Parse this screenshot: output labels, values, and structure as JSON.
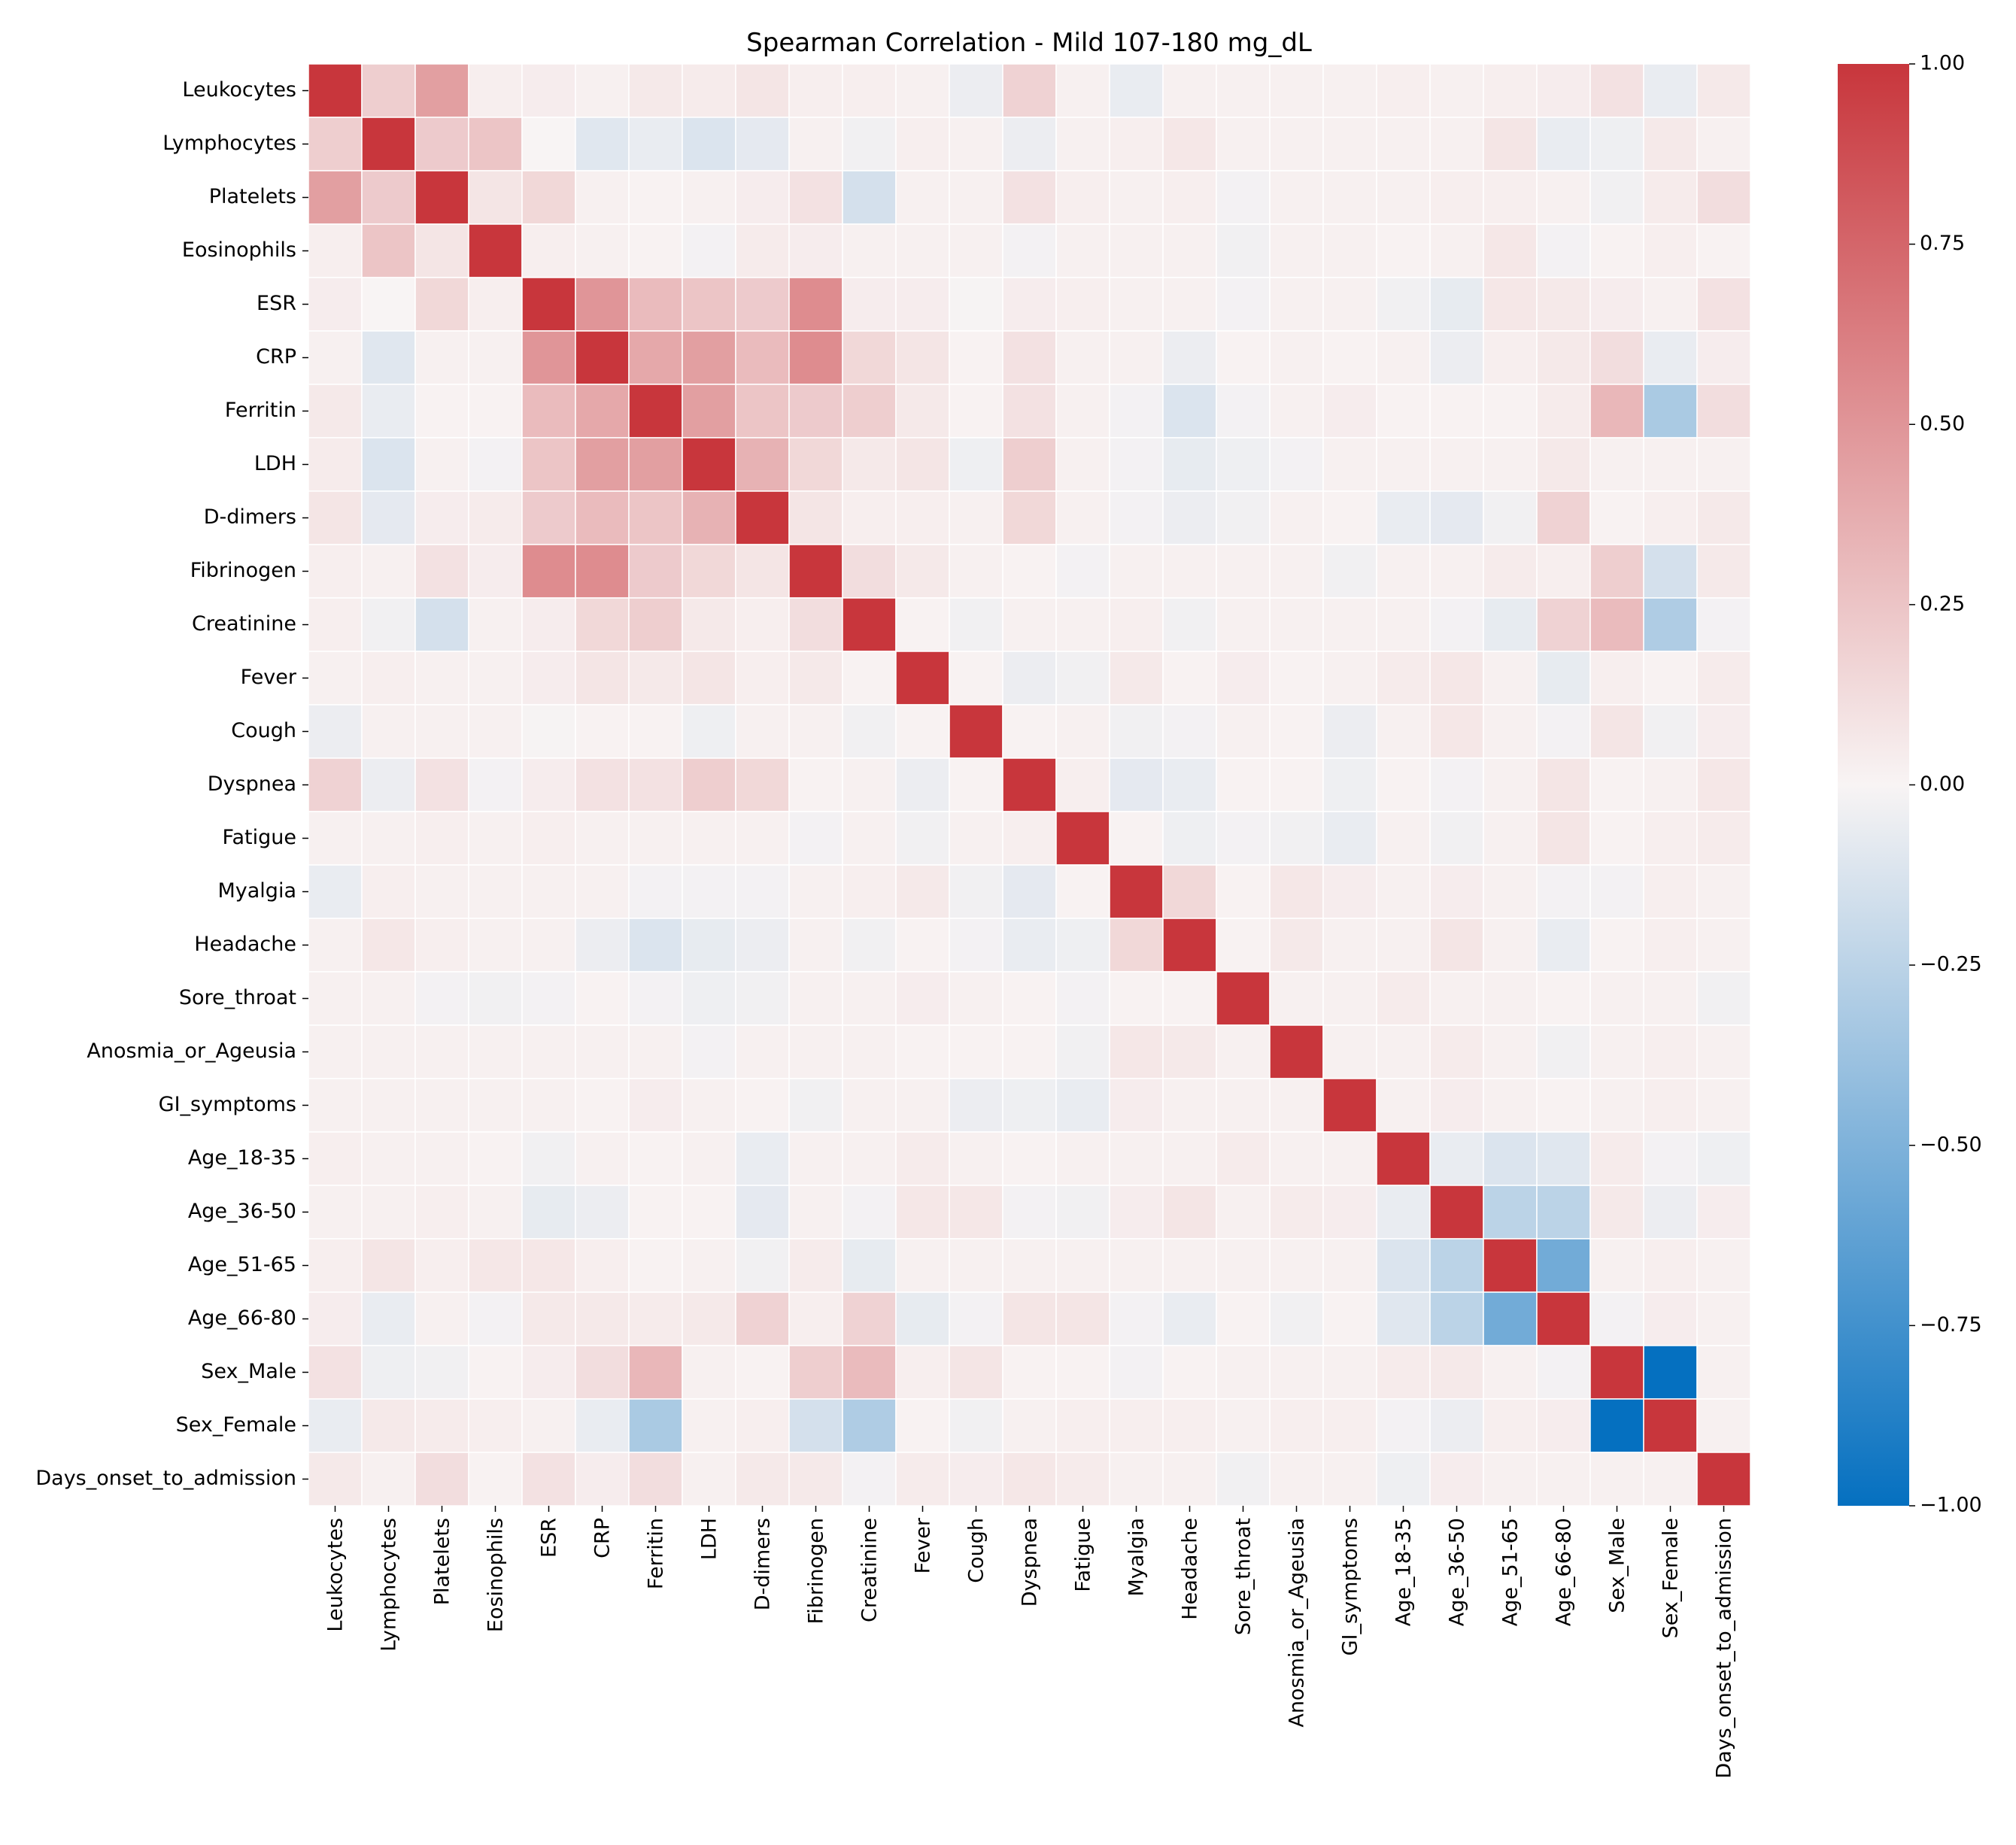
{
  "chart_data": {
    "type": "heatmap",
    "title": "Spearman Correlation - Mild 107-180 mg_dL",
    "labels": [
      "Leukocytes",
      "Lymphocytes",
      "Platelets",
      "Eosinophils",
      "ESR",
      "CRP",
      "Ferritin",
      "LDH",
      "D-dimers",
      "Fibrinogen",
      "Creatinine",
      "Fever",
      "Cough",
      "Dyspnea",
      "Fatigue",
      "Myalgia",
      "Headache",
      "Sore_throat",
      "Anosmia_or_Ageusia",
      "GI_symptoms",
      "Age_18-35",
      "Age_36-50",
      "Age_51-65",
      "Age_66-80",
      "Sex_Male",
      "Sex_Female",
      "Days_onset_to_admission"
    ],
    "matrix": [
      [
        1.0,
        0.2,
        0.45,
        0.03,
        0.04,
        0.02,
        0.06,
        0.05,
        0.08,
        0.03,
        0.03,
        0.02,
        -0.05,
        0.18,
        0.02,
        -0.06,
        0.02,
        0.02,
        0.02,
        0.02,
        0.03,
        0.02,
        0.03,
        0.04,
        0.1,
        -0.06,
        0.06
      ],
      [
        0.2,
        1.0,
        0.22,
        0.25,
        0.0,
        -0.1,
        -0.06,
        -0.12,
        -0.08,
        0.02,
        -0.03,
        0.03,
        0.02,
        -0.05,
        0.02,
        0.03,
        0.07,
        0.02,
        0.02,
        0.02,
        0.02,
        0.02,
        0.08,
        -0.06,
        -0.04,
        0.06,
        0.02
      ],
      [
        0.45,
        0.22,
        1.0,
        0.08,
        0.15,
        0.02,
        0.01,
        0.02,
        0.04,
        0.1,
        -0.15,
        0.02,
        0.02,
        0.1,
        0.03,
        0.02,
        0.03,
        -0.02,
        0.02,
        0.02,
        0.02,
        0.03,
        0.03,
        0.02,
        -0.03,
        0.05,
        0.12
      ],
      [
        0.03,
        0.25,
        0.08,
        1.0,
        0.03,
        0.02,
        0.01,
        -0.02,
        0.05,
        0.04,
        0.02,
        0.02,
        0.02,
        -0.02,
        0.02,
        0.02,
        0.02,
        -0.03,
        0.02,
        0.02,
        0.01,
        0.02,
        0.07,
        -0.02,
        0.01,
        0.03,
        0.01
      ],
      [
        0.04,
        0.0,
        0.15,
        0.03,
        1.0,
        0.5,
        0.3,
        0.25,
        0.22,
        0.55,
        0.04,
        0.04,
        -0.01,
        0.04,
        0.03,
        0.02,
        0.02,
        -0.02,
        0.02,
        0.02,
        -0.03,
        -0.07,
        0.07,
        0.06,
        0.04,
        0.02,
        0.1
      ],
      [
        0.02,
        -0.1,
        0.02,
        0.02,
        0.5,
        1.0,
        0.4,
        0.45,
        0.3,
        0.55,
        0.15,
        0.08,
        0.01,
        0.1,
        0.02,
        0.02,
        -0.05,
        0.01,
        0.02,
        0.01,
        0.02,
        -0.05,
        0.03,
        0.06,
        0.12,
        -0.06,
        0.04
      ],
      [
        0.06,
        -0.06,
        0.01,
        0.01,
        0.3,
        0.4,
        1.0,
        0.45,
        0.25,
        0.22,
        0.2,
        0.06,
        0.01,
        0.1,
        0.02,
        -0.02,
        -0.12,
        -0.02,
        0.02,
        0.04,
        0.01,
        0.01,
        0.01,
        0.05,
        0.32,
        -0.32,
        0.12
      ],
      [
        0.05,
        -0.12,
        0.02,
        -0.02,
        0.25,
        0.45,
        0.45,
        1.0,
        0.35,
        0.15,
        0.06,
        0.08,
        -0.04,
        0.2,
        0.02,
        -0.02,
        -0.07,
        -0.04,
        -0.02,
        0.02,
        0.02,
        0.02,
        0.02,
        0.06,
        0.02,
        0.02,
        0.02
      ],
      [
        0.08,
        -0.08,
        0.04,
        0.05,
        0.22,
        0.3,
        0.25,
        0.35,
        1.0,
        0.08,
        0.03,
        0.03,
        0.02,
        0.15,
        0.02,
        -0.02,
        -0.05,
        -0.03,
        0.02,
        0.01,
        -0.06,
        -0.08,
        -0.03,
        0.18,
        0.01,
        0.03,
        0.06
      ],
      [
        0.03,
        0.02,
        0.1,
        0.04,
        0.55,
        0.55,
        0.22,
        0.15,
        0.08,
        1.0,
        0.12,
        0.06,
        0.02,
        0.01,
        -0.02,
        0.02,
        0.02,
        0.02,
        0.02,
        -0.03,
        0.02,
        0.02,
        0.05,
        0.03,
        0.2,
        -0.15,
        0.06
      ],
      [
        0.03,
        -0.03,
        -0.15,
        0.02,
        0.04,
        0.15,
        0.2,
        0.06,
        0.03,
        0.12,
        1.0,
        0.01,
        -0.03,
        0.02,
        0.02,
        0.03,
        -0.03,
        0.02,
        0.02,
        0.02,
        0.02,
        -0.02,
        -0.07,
        0.18,
        0.3,
        -0.3,
        -0.02
      ],
      [
        0.02,
        0.03,
        0.02,
        0.02,
        0.04,
        0.08,
        0.06,
        0.08,
        0.03,
        0.06,
        0.01,
        1.0,
        0.01,
        -0.05,
        -0.03,
        0.06,
        0.01,
        0.04,
        0.01,
        0.02,
        0.05,
        0.07,
        0.02,
        -0.07,
        0.03,
        0.01,
        0.05
      ],
      [
        -0.05,
        0.02,
        0.02,
        0.02,
        -0.01,
        0.01,
        0.01,
        -0.04,
        0.02,
        0.02,
        -0.03,
        0.01,
        1.0,
        0.01,
        0.02,
        -0.03,
        -0.02,
        0.02,
        0.01,
        -0.05,
        0.02,
        0.07,
        0.02,
        -0.02,
        0.08,
        -0.03,
        0.04
      ],
      [
        0.18,
        -0.05,
        0.1,
        -0.02,
        0.04,
        0.1,
        0.1,
        0.2,
        0.15,
        0.01,
        0.02,
        -0.05,
        0.01,
        1.0,
        0.03,
        -0.08,
        -0.06,
        0.01,
        0.01,
        -0.04,
        0.01,
        -0.02,
        0.02,
        0.08,
        0.01,
        0.02,
        0.07
      ],
      [
        0.02,
        0.02,
        0.03,
        0.02,
        0.03,
        0.02,
        0.02,
        0.02,
        0.02,
        -0.02,
        0.02,
        -0.03,
        0.02,
        0.03,
        1.0,
        0.01,
        -0.04,
        -0.02,
        -0.03,
        -0.06,
        0.02,
        -0.03,
        0.02,
        0.08,
        0.01,
        0.03,
        0.05
      ],
      [
        -0.06,
        0.03,
        0.02,
        0.02,
        0.02,
        0.02,
        -0.02,
        -0.02,
        -0.02,
        0.02,
        0.03,
        0.06,
        -0.03,
        -0.08,
        0.01,
        1.0,
        0.15,
        0.01,
        0.07,
        0.04,
        0.02,
        0.04,
        0.02,
        -0.02,
        -0.02,
        0.03,
        0.02
      ],
      [
        0.02,
        0.07,
        0.03,
        0.02,
        0.02,
        -0.05,
        -0.12,
        -0.07,
        -0.05,
        0.02,
        -0.03,
        0.01,
        -0.02,
        -0.06,
        -0.04,
        0.15,
        1.0,
        0.01,
        0.06,
        0.02,
        0.02,
        0.08,
        0.02,
        -0.06,
        0.01,
        0.03,
        0.02
      ],
      [
        0.02,
        0.02,
        -0.02,
        -0.03,
        -0.02,
        0.01,
        -0.02,
        -0.04,
        -0.03,
        0.02,
        0.02,
        0.04,
        0.02,
        0.01,
        -0.02,
        0.01,
        0.01,
        1.0,
        0.02,
        0.02,
        0.05,
        0.02,
        0.02,
        0.01,
        0.02,
        0.02,
        -0.03
      ],
      [
        0.02,
        0.02,
        0.02,
        0.02,
        0.02,
        0.02,
        0.02,
        -0.02,
        0.02,
        0.02,
        0.02,
        0.01,
        0.01,
        0.01,
        -0.03,
        0.07,
        0.06,
        0.02,
        1.0,
        0.02,
        0.02,
        0.05,
        0.02,
        -0.03,
        0.02,
        0.03,
        0.02
      ],
      [
        0.02,
        0.02,
        0.02,
        0.02,
        0.02,
        0.01,
        0.04,
        0.02,
        0.01,
        -0.03,
        0.02,
        0.02,
        -0.05,
        -0.04,
        -0.06,
        0.04,
        0.02,
        0.02,
        0.02,
        1.0,
        0.02,
        0.04,
        0.02,
        0.01,
        0.02,
        0.03,
        0.02
      ],
      [
        0.03,
        0.02,
        0.02,
        0.01,
        -0.03,
        0.02,
        0.01,
        0.02,
        -0.06,
        0.02,
        0.02,
        0.05,
        0.02,
        0.01,
        0.02,
        0.02,
        0.02,
        0.05,
        0.02,
        0.02,
        1.0,
        -0.06,
        -0.12,
        -0.1,
        0.05,
        -0.02,
        -0.04
      ],
      [
        0.02,
        0.02,
        0.03,
        0.02,
        -0.07,
        -0.05,
        0.01,
        0.01,
        -0.08,
        0.02,
        -0.02,
        0.07,
        0.07,
        -0.02,
        -0.03,
        0.04,
        0.08,
        0.02,
        0.05,
        0.04,
        -0.06,
        1.0,
        -0.25,
        -0.25,
        0.06,
        -0.05,
        0.04
      ],
      [
        0.03,
        0.08,
        0.03,
        0.07,
        0.07,
        0.03,
        0.01,
        0.02,
        -0.03,
        0.05,
        -0.07,
        0.02,
        0.02,
        0.02,
        0.02,
        0.02,
        0.02,
        0.02,
        0.02,
        0.02,
        -0.12,
        -0.25,
        1.0,
        -0.55,
        0.02,
        0.03,
        0.02
      ],
      [
        0.04,
        -0.06,
        0.02,
        -0.02,
        0.06,
        0.06,
        0.05,
        0.06,
        0.18,
        0.03,
        0.18,
        -0.07,
        -0.02,
        0.08,
        0.08,
        -0.02,
        -0.06,
        0.01,
        -0.03,
        0.01,
        -0.1,
        -0.25,
        -0.55,
        1.0,
        -0.02,
        0.04,
        0.02
      ],
      [
        0.1,
        -0.04,
        -0.03,
        0.01,
        0.04,
        0.12,
        0.32,
        0.02,
        0.01,
        0.2,
        0.3,
        0.03,
        0.08,
        0.01,
        0.01,
        -0.02,
        0.01,
        0.02,
        0.02,
        0.02,
        0.05,
        0.06,
        0.02,
        -0.02,
        1.0,
        -1.0,
        0.02
      ],
      [
        -0.06,
        0.06,
        0.05,
        0.03,
        0.02,
        -0.06,
        -0.32,
        0.02,
        0.03,
        -0.15,
        -0.3,
        0.01,
        -0.03,
        0.02,
        0.03,
        0.03,
        0.03,
        0.02,
        0.03,
        0.03,
        -0.02,
        -0.05,
        0.03,
        0.04,
        -1.0,
        1.0,
        0.02
      ],
      [
        0.06,
        0.02,
        0.12,
        0.01,
        0.1,
        0.04,
        0.12,
        0.02,
        0.06,
        0.06,
        -0.02,
        0.05,
        0.04,
        0.07,
        0.05,
        0.02,
        0.02,
        -0.03,
        0.02,
        0.02,
        -0.04,
        0.04,
        0.02,
        0.02,
        0.02,
        0.02,
        1.0
      ]
    ],
    "vmin": -1.0,
    "vmax": 1.0,
    "colormap": {
      "low": "#0570c0",
      "mid": "#f8f4f4",
      "high": "#c8363c"
    },
    "colorbar": {
      "ticks": [
        1.0,
        0.75,
        0.5,
        0.25,
        0.0,
        -0.25,
        -0.5,
        -0.75,
        -1.0
      ],
      "tick_labels": [
        "1.00",
        "0.75",
        "0.50",
        "0.25",
        "0.00",
        "−0.25",
        "−0.50",
        "−0.75",
        "−1.00"
      ],
      "placement": "right"
    }
  }
}
